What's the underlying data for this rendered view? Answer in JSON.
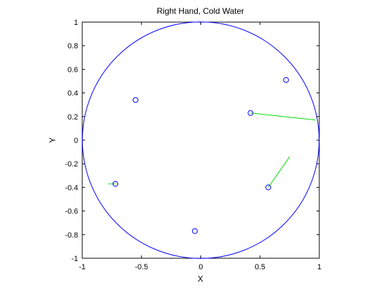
{
  "chart_data": {
    "type": "scatter",
    "title": "Right Hand, Cold Water",
    "xlabel": "X",
    "ylabel": "Y",
    "xlim": [
      -1,
      1
    ],
    "ylim": [
      -1,
      1
    ],
    "xticks": [
      -1,
      -0.5,
      0,
      0.5,
      1
    ],
    "xtick_labels": [
      "-1",
      "-0.5",
      "0",
      "0.5",
      "1"
    ],
    "yticks": [
      -1,
      -0.8,
      -0.6,
      -0.4,
      -0.2,
      0,
      0.2,
      0.4,
      0.6,
      0.8,
      1
    ],
    "ytick_labels": [
      "-1",
      "-0.8",
      "-0.6",
      "-0.4",
      "-0.2",
      "0",
      "0.2",
      "0.4",
      "0.6",
      "0.8",
      "1"
    ],
    "grid": false,
    "aspect": "equal",
    "circle": {
      "center": [
        0,
        0
      ],
      "radius": 1,
      "color": "#0000ff"
    },
    "points": [
      {
        "x": 0.72,
        "y": 0.51
      },
      {
        "x": -0.55,
        "y": 0.34
      },
      {
        "x": 0.42,
        "y": 0.23
      },
      {
        "x": -0.72,
        "y": -0.37
      },
      {
        "x": 0.57,
        "y": -0.4
      },
      {
        "x": -0.05,
        "y": -0.77
      }
    ],
    "point_marker": "open-circle",
    "point_color": "#0000ff",
    "vectors": [
      {
        "x1": 0.42,
        "y1": 0.23,
        "x2": 0.97,
        "y2": 0.17
      },
      {
        "x1": 0.57,
        "y1": -0.4,
        "x2": 0.75,
        "y2": -0.14
      },
      {
        "x1": -0.72,
        "y1": -0.37,
        "x2": -0.78,
        "y2": -0.37
      }
    ],
    "vector_color": "#00dd00"
  }
}
